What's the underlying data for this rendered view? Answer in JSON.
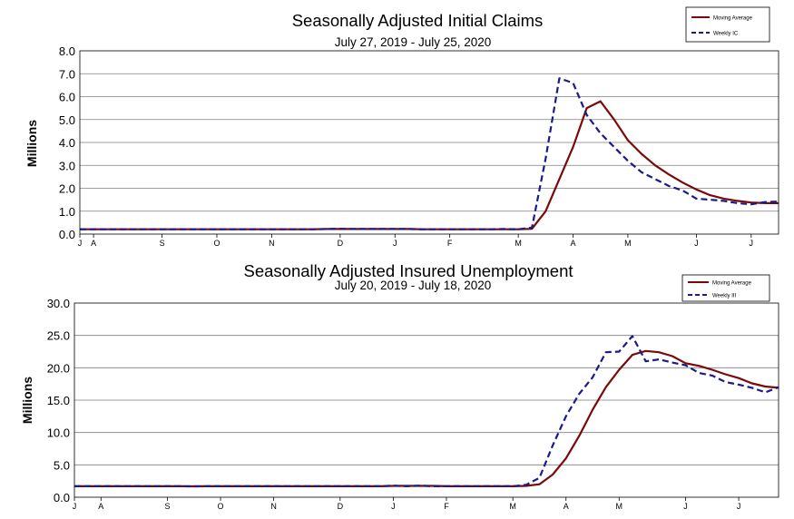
{
  "chart_data": [
    {
      "type": "line",
      "title": "Seasonally Adjusted Initial Claims",
      "subtitle": "July 27, 2019 - July 25, 2020",
      "ylabel": "Millions",
      "xlabel": "",
      "ylim": [
        0,
        8
      ],
      "yticks": [
        "0.0",
        "1.0",
        "2.0",
        "3.0",
        "4.0",
        "5.0",
        "6.0",
        "7.0",
        "8.0"
      ],
      "xtick_labels": [
        {
          "label": "J",
          "week": 0
        },
        {
          "label": "A",
          "week": 1
        },
        {
          "label": "S",
          "week": 6
        },
        {
          "label": "O",
          "week": 10
        },
        {
          "label": "N",
          "week": 14
        },
        {
          "label": "D",
          "week": 19
        },
        {
          "label": "J",
          "week": 23
        },
        {
          "label": "F",
          "week": 27
        },
        {
          "label": "M",
          "week": 32
        },
        {
          "label": "A",
          "week": 36
        },
        {
          "label": "M",
          "week": 40
        },
        {
          "label": "J",
          "week": 45
        },
        {
          "label": "J",
          "week": 49
        }
      ],
      "grid": true,
      "legend_position": "top-right",
      "series": [
        {
          "name": "Moving Average",
          "color": "#7a0a0a",
          "dash": "solid",
          "values": [
            0.21,
            0.21,
            0.21,
            0.21,
            0.21,
            0.21,
            0.21,
            0.21,
            0.21,
            0.21,
            0.21,
            0.21,
            0.21,
            0.21,
            0.21,
            0.21,
            0.21,
            0.21,
            0.22,
            0.22,
            0.22,
            0.22,
            0.22,
            0.22,
            0.22,
            0.21,
            0.21,
            0.21,
            0.21,
            0.21,
            0.21,
            0.21,
            0.21,
            0.23,
            1.0,
            2.4,
            3.8,
            5.5,
            5.8,
            5.0,
            4.1,
            3.5,
            3.0,
            2.6,
            2.25,
            1.95,
            1.7,
            1.55,
            1.45,
            1.38,
            1.35,
            1.35
          ]
        },
        {
          "name": "Weekly IC",
          "color": "#1a1a8c",
          "dash": "dashed",
          "values": [
            0.21,
            0.21,
            0.21,
            0.21,
            0.21,
            0.21,
            0.21,
            0.21,
            0.21,
            0.21,
            0.21,
            0.21,
            0.21,
            0.21,
            0.21,
            0.21,
            0.21,
            0.21,
            0.22,
            0.23,
            0.22,
            0.22,
            0.22,
            0.22,
            0.22,
            0.21,
            0.21,
            0.21,
            0.21,
            0.21,
            0.21,
            0.22,
            0.21,
            0.28,
            3.3,
            6.8,
            6.6,
            5.2,
            4.4,
            3.8,
            3.2,
            2.7,
            2.4,
            2.1,
            1.9,
            1.55,
            1.5,
            1.45,
            1.35,
            1.3,
            1.4,
            1.42
          ]
        }
      ]
    },
    {
      "type": "line",
      "title": "Seasonally Adjusted Insured Unemployment",
      "subtitle": "July 20, 2019 - July 18, 2020",
      "ylabel": "Millions",
      "xlabel": "",
      "ylim": [
        0,
        30
      ],
      "yticks": [
        "0.0",
        "5.0",
        "10.0",
        "15.0",
        "20.0",
        "25.0",
        "30.0"
      ],
      "xtick_labels": [
        {
          "label": "J",
          "week": 0
        },
        {
          "label": "A",
          "week": 2
        },
        {
          "label": "S",
          "week": 7
        },
        {
          "label": "O",
          "week": 11
        },
        {
          "label": "N",
          "week": 15
        },
        {
          "label": "D",
          "week": 20
        },
        {
          "label": "J",
          "week": 24
        },
        {
          "label": "F",
          "week": 28
        },
        {
          "label": "M",
          "week": 33
        },
        {
          "label": "A",
          "week": 37
        },
        {
          "label": "M",
          "week": 41
        },
        {
          "label": "J",
          "week": 46
        },
        {
          "label": "J",
          "week": 50
        }
      ],
      "grid": true,
      "legend_position": "top-right",
      "series": [
        {
          "name": "Moving Average",
          "color": "#7a0a0a",
          "dash": "solid",
          "values": [
            1.7,
            1.7,
            1.7,
            1.7,
            1.7,
            1.7,
            1.7,
            1.7,
            1.7,
            1.68,
            1.7,
            1.7,
            1.7,
            1.7,
            1.7,
            1.7,
            1.7,
            1.7,
            1.7,
            1.7,
            1.7,
            1.7,
            1.7,
            1.7,
            1.75,
            1.75,
            1.75,
            1.75,
            1.7,
            1.7,
            1.7,
            1.7,
            1.7,
            1.7,
            1.75,
            2.0,
            3.5,
            6.0,
            9.5,
            13.5,
            17.0,
            19.7,
            22.0,
            22.6,
            22.4,
            21.8,
            20.7,
            20.3,
            19.7,
            19.0,
            18.4,
            17.6,
            17.1,
            16.9
          ]
        },
        {
          "name": "Weekly III",
          "color": "#1a1a8c",
          "dash": "dashed",
          "values": [
            1.7,
            1.7,
            1.7,
            1.7,
            1.7,
            1.7,
            1.7,
            1.7,
            1.7,
            1.68,
            1.7,
            1.7,
            1.7,
            1.7,
            1.7,
            1.7,
            1.7,
            1.7,
            1.7,
            1.7,
            1.7,
            1.7,
            1.7,
            1.7,
            1.8,
            1.7,
            1.8,
            1.7,
            1.7,
            1.7,
            1.7,
            1.7,
            1.7,
            1.7,
            1.9,
            3.0,
            8.0,
            12.5,
            16.0,
            18.5,
            22.4,
            22.5,
            24.9,
            21.0,
            21.3,
            20.8,
            20.4,
            19.2,
            18.8,
            17.8,
            17.4,
            16.9,
            16.2,
            17.0
          ]
        }
      ]
    }
  ]
}
